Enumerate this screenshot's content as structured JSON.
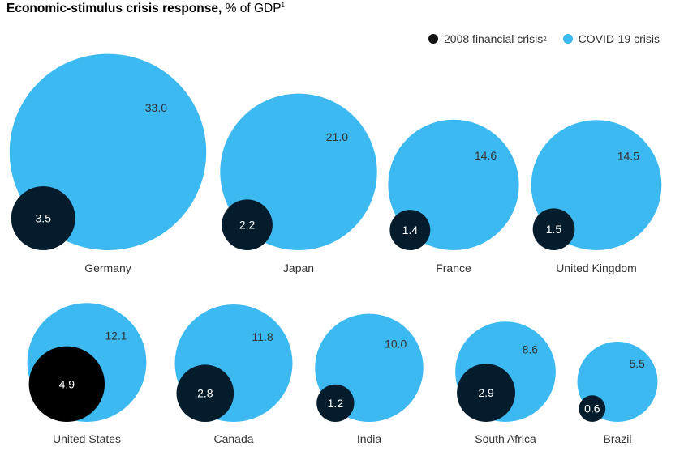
{
  "header": {
    "title_bold": "Economic-stimulus crisis response,",
    "title_rest": " % of GDP",
    "title_footnote": "1"
  },
  "legend": {
    "gfc_label": "2008 financial crisis",
    "gfc_footnote": "2",
    "covid_label": "COVID-19 crisis"
  },
  "colors": {
    "covid": "#3bb9f0",
    "gfc": "#051c2c",
    "us_gfc": "#000000",
    "text": "#333333"
  },
  "chart_data": {
    "type": "bubble",
    "title": "Economic-stimulus crisis response, % of GDP",
    "unit": "% of GDP",
    "series": [
      {
        "name": "2008 financial crisis",
        "key": "gfc"
      },
      {
        "name": "COVID-19 crisis",
        "key": "covid"
      }
    ],
    "categories": [
      "Germany",
      "Japan",
      "France",
      "United Kingdom",
      "United States",
      "Canada",
      "India",
      "South Africa",
      "Brazil"
    ],
    "points": [
      {
        "country": "Germany",
        "covid": 33.0,
        "gfc": 3.5,
        "covid_label": "33.0",
        "gfc_label": "3.5"
      },
      {
        "country": "Japan",
        "covid": 21.0,
        "gfc": 2.2,
        "covid_label": "21.0",
        "gfc_label": "2.2"
      },
      {
        "country": "France",
        "covid": 14.6,
        "gfc": 1.4,
        "covid_label": "14.6",
        "gfc_label": "1.4"
      },
      {
        "country": "United Kingdom",
        "covid": 14.5,
        "gfc": 1.5,
        "covid_label": "14.5",
        "gfc_label": "1.5"
      },
      {
        "country": "United States",
        "covid": 12.1,
        "gfc": 4.9,
        "covid_label": "12.1",
        "gfc_label": "4.9"
      },
      {
        "country": "Canada",
        "covid": 11.8,
        "gfc": 2.8,
        "covid_label": "11.8",
        "gfc_label": "2.8"
      },
      {
        "country": "India",
        "covid": 10.0,
        "gfc": 1.2,
        "covid_label": "10.0",
        "gfc_label": "1.2"
      },
      {
        "country": "South Africa",
        "covid": 8.6,
        "gfc": 2.9,
        "covid_label": "8.6",
        "gfc_label": "2.9"
      },
      {
        "country": "Brazil",
        "covid": 5.5,
        "gfc": 0.6,
        "covid_label": "5.5",
        "gfc_label": "0.6"
      }
    ]
  }
}
